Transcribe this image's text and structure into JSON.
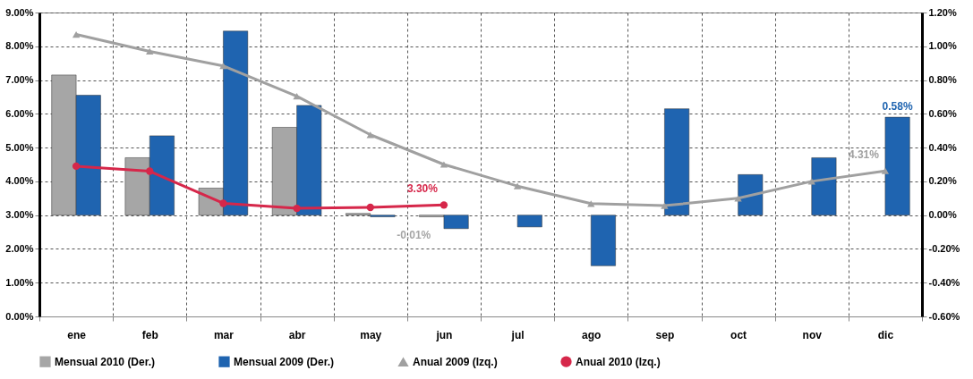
{
  "chart_data": {
    "type": "bar",
    "categories": [
      "ene",
      "feb",
      "mar",
      "abr",
      "may",
      "jun",
      "jul",
      "ago",
      "sep",
      "oct",
      "nov",
      "dic"
    ],
    "series": [
      {
        "name": "Mensual 2010 (Der.)",
        "axis": "y2",
        "color": "#a6a6a6",
        "values": [
          0.83,
          0.34,
          0.16,
          0.52,
          0.01,
          -0.01,
          null,
          null,
          null,
          null,
          null,
          null
        ],
        "value_labels": [
          null,
          null,
          null,
          null,
          null,
          "-0.01%",
          null,
          null,
          null,
          null,
          null,
          null
        ]
      },
      {
        "name": "Mensual 2009 (Der.)",
        "axis": "y2",
        "color": "#1f64b0",
        "values": [
          0.71,
          0.47,
          1.09,
          0.65,
          -0.01,
          -0.08,
          -0.07,
          -0.3,
          0.63,
          0.24,
          0.34,
          0.58
        ],
        "value_labels": [
          null,
          null,
          null,
          null,
          null,
          null,
          null,
          null,
          null,
          null,
          null,
          "0.58%"
        ]
      },
      {
        "name": "Anual 2009 (Izq.)",
        "type": "line",
        "marker": "triangle",
        "color": "#a0a0a0",
        "values": [
          8.35,
          7.85,
          7.42,
          6.52,
          5.38,
          4.5,
          3.86,
          3.34,
          3.28,
          3.5,
          4.0,
          4.31
        ],
        "value_labels": [
          null,
          null,
          null,
          null,
          null,
          null,
          null,
          null,
          null,
          null,
          null,
          "4.31%"
        ]
      },
      {
        "name": "Anual 2010 (Izq.)",
        "type": "line",
        "marker": "circle",
        "color": "#d6274a",
        "values": [
          4.45,
          4.3,
          3.35,
          3.2,
          3.23,
          3.3,
          null,
          null,
          null,
          null,
          null,
          null
        ],
        "value_labels": [
          null,
          null,
          null,
          null,
          null,
          "3.30%",
          null,
          null,
          null,
          null,
          null,
          null
        ]
      }
    ],
    "ylim": [
      0,
      9
    ],
    "yticks": [
      {
        "value": 0,
        "label": "0.00%"
      },
      {
        "value": 1,
        "label": "1.00%"
      },
      {
        "value": 2,
        "label": "2.00%"
      },
      {
        "value": 3,
        "label": "3.00%"
      },
      {
        "value": 4,
        "label": "4.00%"
      },
      {
        "value": 5,
        "label": "5.00%"
      },
      {
        "value": 6,
        "label": "6.00%"
      },
      {
        "value": 7,
        "label": "7.00%"
      },
      {
        "value": 8,
        "label": "8.00%"
      },
      {
        "value": 9,
        "label": "9.00%"
      }
    ],
    "y2lim": [
      -0.6,
      1.2
    ],
    "y2ticks": [
      {
        "value": -0.6,
        "label": "-0.60%"
      },
      {
        "value": -0.4,
        "label": "-0.40%"
      },
      {
        "value": -0.2,
        "label": "-0.20%"
      },
      {
        "value": 0,
        "label": "0.00%"
      },
      {
        "value": 0.2,
        "label": "0.20%"
      },
      {
        "value": 0.4,
        "label": "0.40%"
      },
      {
        "value": 0.6,
        "label": "0.60%"
      },
      {
        "value": 0.8,
        "label": "0.80%"
      },
      {
        "value": 1.0,
        "label": "1.00%"
      },
      {
        "value": 1.2,
        "label": "1.20%"
      }
    ],
    "grid": true,
    "legend": "bottom"
  }
}
